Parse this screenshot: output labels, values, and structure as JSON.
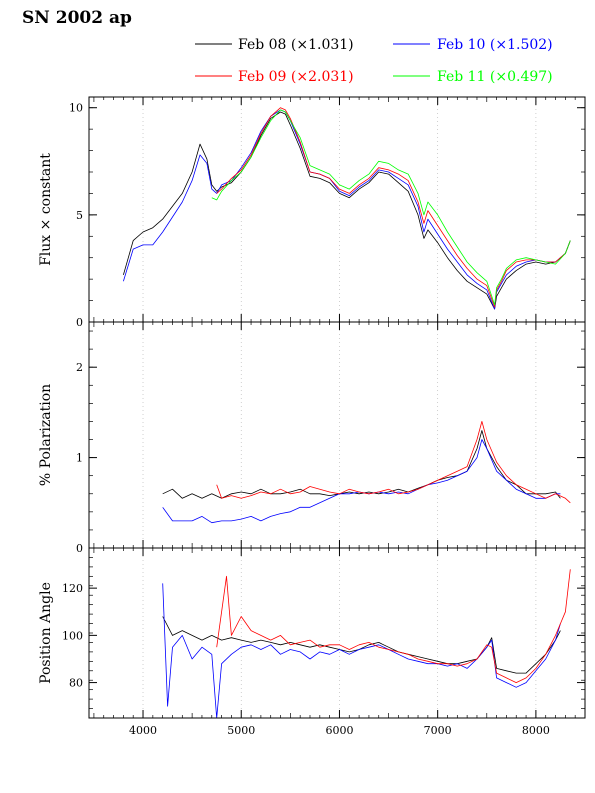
{
  "title": "SN 2002 ap",
  "legend": [
    {
      "label": "Feb 08",
      "scale": "(×1.031)",
      "color": "#000000"
    },
    {
      "label": "Feb 10",
      "scale": "(×1.502)",
      "color": "#0000ff"
    },
    {
      "label": "Feb 09",
      "scale": "(×2.031)",
      "color": "#ff0000"
    },
    {
      "label": "Feb 11",
      "scale": "(×0.497)",
      "color": "#00ff00"
    }
  ],
  "chart_data": [
    {
      "type": "line",
      "title": "SN 2002 ap",
      "xlabel": "",
      "ylabel": "Flux × constant",
      "xlim": [
        3450,
        8500
      ],
      "ylim": [
        0,
        10.5
      ],
      "xticks": [
        4000,
        5000,
        6000,
        7000,
        8000
      ],
      "yticks": [
        0,
        5,
        10
      ],
      "grid": "vertical-dotted",
      "series": [
        {
          "name": "Feb 08",
          "color": "#000000",
          "x": [
            3800,
            3900,
            4000,
            4100,
            4200,
            4300,
            4400,
            4500,
            4580,
            4650,
            4700,
            4750,
            4800,
            4900,
            5000,
            5100,
            5200,
            5300,
            5400,
            5450,
            5500,
            5600,
            5700,
            5800,
            5900,
            6000,
            6100,
            6200,
            6300,
            6400,
            6500,
            6600,
            6700,
            6800,
            6860,
            6900,
            7000,
            7100,
            7200,
            7300,
            7400,
            7500,
            7580,
            7600,
            7650,
            7700,
            7800,
            7900,
            8000,
            8100,
            8200,
            8300,
            8350
          ],
          "y": [
            2.2,
            3.8,
            4.2,
            4.4,
            4.8,
            5.4,
            6.0,
            7.0,
            8.3,
            7.6,
            6.4,
            6.1,
            6.3,
            6.5,
            7.0,
            7.7,
            8.7,
            9.5,
            9.8,
            9.7,
            9.2,
            8.1,
            6.8,
            6.7,
            6.5,
            6.0,
            5.8,
            6.2,
            6.5,
            7.0,
            6.9,
            6.5,
            6.1,
            5.0,
            3.9,
            4.3,
            3.7,
            3.0,
            2.4,
            1.9,
            1.6,
            1.3,
            0.6,
            1.2,
            1.6,
            2.0,
            2.4,
            2.7,
            2.8,
            2.7,
            2.8,
            3.2,
            3.8
          ]
        },
        {
          "name": "Feb 10",
          "color": "#0000ff",
          "x": [
            3800,
            3900,
            4000,
            4100,
            4200,
            4300,
            4400,
            4500,
            4580,
            4650,
            4700,
            4750,
            4800,
            4900,
            5000,
            5100,
            5200,
            5300,
            5400,
            5450,
            5500,
            5600,
            5700,
            5800,
            5900,
            6000,
            6100,
            6200,
            6300,
            6400,
            6500,
            6600,
            6700,
            6800,
            6860,
            6900,
            7000,
            7100,
            7200,
            7300,
            7400,
            7500,
            7580,
            7600,
            7650,
            7700,
            7800,
            7900,
            8000,
            8100,
            8200,
            8300,
            8350
          ],
          "y": [
            1.9,
            3.4,
            3.6,
            3.6,
            4.2,
            4.9,
            5.6,
            6.6,
            7.8,
            7.4,
            6.2,
            6.0,
            6.4,
            6.6,
            7.2,
            7.9,
            8.9,
            9.6,
            9.9,
            9.8,
            9.4,
            8.3,
            7.0,
            6.9,
            6.7,
            6.1,
            5.9,
            6.3,
            6.6,
            7.1,
            7.0,
            6.7,
            6.4,
            5.4,
            4.2,
            4.8,
            4.1,
            3.4,
            2.8,
            2.2,
            1.8,
            1.5,
            0.6,
            1.4,
            1.8,
            2.2,
            2.6,
            2.8,
            2.9,
            2.8,
            2.8,
            3.2,
            3.8
          ]
        },
        {
          "name": "Feb 09",
          "color": "#ff0000",
          "x": [
            4750,
            4800,
            4900,
            5000,
            5100,
            5200,
            5300,
            5400,
            5450,
            5500,
            5600,
            5700,
            5800,
            5900,
            6000,
            6100,
            6200,
            6300,
            6400,
            6500,
            6600,
            6700,
            6800,
            6860,
            6900,
            7000,
            7100,
            7200,
            7300,
            7400,
            7500,
            7580,
            7600,
            7650,
            7700,
            7800,
            7900,
            8000,
            8100,
            8200,
            8300,
            8350
          ],
          "y": [
            6.0,
            6.2,
            6.7,
            7.1,
            7.8,
            8.8,
            9.6,
            10.0,
            9.9,
            9.5,
            8.4,
            7.0,
            6.9,
            6.7,
            6.2,
            6.0,
            6.4,
            6.7,
            7.2,
            7.1,
            6.9,
            6.6,
            5.6,
            4.6,
            5.2,
            4.5,
            3.8,
            3.1,
            2.5,
            2.0,
            1.7,
            0.7,
            1.5,
            1.9,
            2.4,
            2.8,
            2.9,
            2.9,
            2.8,
            2.8,
            3.2,
            3.8
          ]
        },
        {
          "name": "Feb 11",
          "color": "#00ff00",
          "x": [
            4700,
            4750,
            4800,
            4900,
            5000,
            5100,
            5200,
            5300,
            5400,
            5450,
            5500,
            5600,
            5700,
            5800,
            5900,
            6000,
            6100,
            6200,
            6300,
            6400,
            6500,
            6600,
            6700,
            6800,
            6860,
            6900,
            7000,
            7100,
            7200,
            7300,
            7400,
            7500,
            7580,
            7600,
            7650,
            7700,
            7800,
            7900,
            8000,
            8100,
            8200,
            8300,
            8350
          ],
          "y": [
            5.8,
            5.7,
            6.1,
            6.6,
            7.0,
            7.7,
            8.6,
            9.4,
            9.9,
            9.8,
            9.4,
            8.6,
            7.3,
            7.1,
            6.9,
            6.4,
            6.2,
            6.6,
            6.9,
            7.5,
            7.4,
            7.1,
            6.9,
            6.0,
            5.0,
            5.6,
            5.0,
            4.2,
            3.5,
            2.8,
            2.3,
            1.9,
            0.8,
            1.6,
            2.0,
            2.5,
            2.9,
            3.0,
            2.9,
            2.8,
            2.7,
            3.2,
            3.8
          ]
        }
      ]
    },
    {
      "type": "line",
      "xlabel": "",
      "ylabel": "% Polarization",
      "xlim": [
        3450,
        8500
      ],
      "ylim": [
        0,
        2.5
      ],
      "xticks": [
        4000,
        5000,
        6000,
        7000,
        8000
      ],
      "yticks": [
        0,
        1,
        2
      ],
      "grid": "vertical-dotted",
      "series": [
        {
          "name": "Feb 08",
          "color": "#000000",
          "x": [
            4200,
            4300,
            4400,
            4500,
            4600,
            4700,
            4800,
            4900,
            5000,
            5100,
            5200,
            5300,
            5400,
            5500,
            5600,
            5700,
            5800,
            5900,
            6000,
            6100,
            6200,
            6300,
            6400,
            6500,
            6600,
            6700,
            6800,
            6900,
            7000,
            7100,
            7200,
            7300,
            7400,
            7450,
            7500,
            7600,
            7700,
            7800,
            7900,
            8000,
            8100,
            8200,
            8250
          ],
          "y": [
            0.6,
            0.65,
            0.55,
            0.6,
            0.55,
            0.6,
            0.55,
            0.6,
            0.62,
            0.6,
            0.65,
            0.6,
            0.6,
            0.62,
            0.65,
            0.6,
            0.6,
            0.58,
            0.6,
            0.62,
            0.6,
            0.62,
            0.6,
            0.62,
            0.65,
            0.62,
            0.66,
            0.7,
            0.75,
            0.78,
            0.8,
            0.85,
            1.1,
            1.3,
            1.1,
            0.9,
            0.75,
            0.7,
            0.6,
            0.6,
            0.6,
            0.62,
            0.55
          ]
        },
        {
          "name": "Feb 10",
          "color": "#0000ff",
          "x": [
            4200,
            4300,
            4400,
            4500,
            4600,
            4700,
            4800,
            4900,
            5000,
            5100,
            5200,
            5300,
            5400,
            5500,
            5600,
            5700,
            5800,
            5900,
            6000,
            6100,
            6200,
            6300,
            6400,
            6500,
            6600,
            6700,
            6800,
            6900,
            7000,
            7100,
            7200,
            7300,
            7400,
            7450,
            7500,
            7600,
            7700,
            7800,
            7900,
            8000,
            8100,
            8200,
            8250
          ],
          "y": [
            0.45,
            0.3,
            0.3,
            0.3,
            0.35,
            0.28,
            0.3,
            0.3,
            0.32,
            0.35,
            0.3,
            0.35,
            0.38,
            0.4,
            0.45,
            0.45,
            0.5,
            0.55,
            0.6,
            0.6,
            0.62,
            0.6,
            0.62,
            0.6,
            0.62,
            0.6,
            0.65,
            0.7,
            0.72,
            0.75,
            0.8,
            0.85,
            1.0,
            1.2,
            1.1,
            0.85,
            0.75,
            0.65,
            0.6,
            0.55,
            0.55,
            0.6,
            0.6
          ]
        },
        {
          "name": "Feb 09",
          "color": "#ff0000",
          "x": [
            4750,
            4800,
            4900,
            5000,
            5100,
            5200,
            5300,
            5400,
            5500,
            5600,
            5700,
            5800,
            5900,
            6000,
            6100,
            6200,
            6300,
            6400,
            6500,
            6600,
            6700,
            6800,
            6900,
            7000,
            7100,
            7200,
            7300,
            7400,
            7450,
            7500,
            7600,
            7700,
            7800,
            7900,
            8000,
            8100,
            8200,
            8300,
            8350
          ],
          "y": [
            0.7,
            0.55,
            0.58,
            0.55,
            0.58,
            0.62,
            0.6,
            0.65,
            0.6,
            0.62,
            0.68,
            0.65,
            0.62,
            0.6,
            0.65,
            0.62,
            0.6,
            0.62,
            0.65,
            0.6,
            0.62,
            0.65,
            0.7,
            0.75,
            0.8,
            0.85,
            0.9,
            1.2,
            1.4,
            1.2,
            0.95,
            0.8,
            0.7,
            0.65,
            0.6,
            0.55,
            0.6,
            0.55,
            0.5
          ]
        }
      ]
    },
    {
      "type": "line",
      "xlabel": "",
      "ylabel": "Position Angle",
      "xlim": [
        3450,
        8500
      ],
      "ylim": [
        65,
        137
      ],
      "xticks": [
        4000,
        5000,
        6000,
        7000,
        8000
      ],
      "yticks": [
        80,
        100,
        120
      ],
      "grid": "vertical-dotted",
      "series": [
        {
          "name": "Feb 08",
          "color": "#000000",
          "x": [
            4200,
            4300,
            4400,
            4500,
            4600,
            4700,
            4800,
            4900,
            5000,
            5100,
            5200,
            5300,
            5400,
            5500,
            5600,
            5700,
            5800,
            5900,
            6000,
            6100,
            6200,
            6300,
            6400,
            6500,
            6600,
            6700,
            6800,
            6900,
            7000,
            7100,
            7200,
            7300,
            7400,
            7500,
            7550,
            7600,
            7700,
            7800,
            7900,
            8000,
            8100,
            8200,
            8250
          ],
          "y": [
            108,
            100,
            102,
            100,
            98,
            100,
            98,
            99,
            98,
            97,
            98,
            97,
            96,
            97,
            96,
            95,
            96,
            95,
            94,
            93,
            94,
            96,
            97,
            95,
            93,
            92,
            91,
            90,
            89,
            88,
            88,
            89,
            90,
            95,
            99,
            86,
            85,
            84,
            84,
            88,
            92,
            98,
            102
          ]
        },
        {
          "name": "Feb 10",
          "color": "#0000ff",
          "x": [
            4200,
            4250,
            4300,
            4400,
            4500,
            4600,
            4700,
            4750,
            4800,
            4900,
            5000,
            5100,
            5200,
            5300,
            5400,
            5500,
            5600,
            5700,
            5800,
            5900,
            6000,
            6100,
            6200,
            6300,
            6400,
            6500,
            6600,
            6700,
            6800,
            6900,
            7000,
            7100,
            7200,
            7300,
            7400,
            7500,
            7550,
            7600,
            7700,
            7800,
            7900,
            8000,
            8100,
            8200,
            8250
          ],
          "y": [
            122,
            70,
            95,
            100,
            90,
            95,
            92,
            65,
            88,
            92,
            95,
            96,
            94,
            96,
            92,
            94,
            93,
            90,
            93,
            92,
            94,
            92,
            94,
            95,
            96,
            94,
            92,
            90,
            89,
            88,
            88,
            87,
            88,
            86,
            90,
            95,
            98,
            82,
            80,
            78,
            80,
            85,
            90,
            98,
            105
          ]
        },
        {
          "name": "Feb 09",
          "color": "#ff0000",
          "x": [
            4750,
            4800,
            4850,
            4900,
            5000,
            5100,
            5200,
            5300,
            5400,
            5500,
            5600,
            5700,
            5800,
            5900,
            6000,
            6100,
            6200,
            6300,
            6400,
            6500,
            6600,
            6700,
            6800,
            6900,
            7000,
            7100,
            7200,
            7300,
            7400,
            7500,
            7550,
            7600,
            7700,
            7800,
            7900,
            8000,
            8100,
            8200,
            8300,
            8350
          ],
          "y": [
            95,
            110,
            125,
            100,
            108,
            102,
            100,
            98,
            100,
            96,
            97,
            98,
            95,
            96,
            96,
            94,
            96,
            97,
            95,
            94,
            93,
            92,
            90,
            89,
            88,
            88,
            87,
            88,
            90,
            96,
            95,
            84,
            82,
            80,
            82,
            86,
            92,
            100,
            110,
            128
          ]
        }
      ]
    }
  ]
}
